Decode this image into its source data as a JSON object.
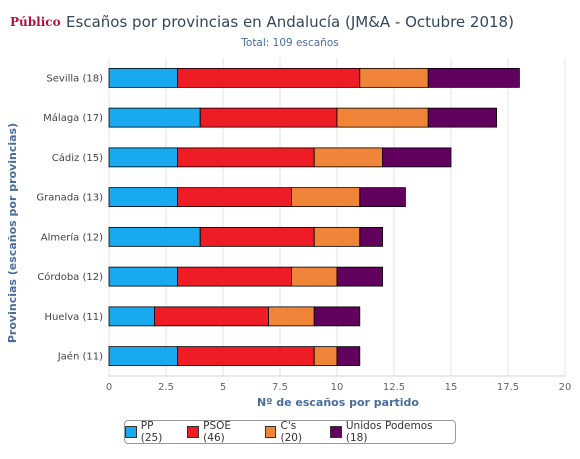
{
  "branding": {
    "logo_text": "Público"
  },
  "chart_data": {
    "type": "bar",
    "orientation": "horizontal",
    "stacked": true,
    "title": "Escaños por provincias en Andalucía (JM&A - Octubre 2018)",
    "subtitle": "Total: 109 escaños",
    "xlabel": "Nº de escaños por partido",
    "ylabel": "Provincias (escaños por provincias)",
    "xlim": [
      0,
      20
    ],
    "x_ticks": [
      "0",
      "2.5",
      "5",
      "7.5",
      "10",
      "12.5",
      "15",
      "17.5",
      "20"
    ],
    "x_tick_values": [
      0,
      2.5,
      5,
      7.5,
      10,
      12.5,
      15,
      17.5,
      20
    ],
    "grid": true,
    "legend_position": "bottom",
    "categories": [
      "Sevilla (18)",
      "Málaga (17)",
      "Cádiz (15)",
      "Granada (13)",
      "Almería (12)",
      "Córdoba (12)",
      "Huelva (11)",
      "Jaén (11)"
    ],
    "series": [
      {
        "name": "PP (25)",
        "color": "#19a9ef",
        "values": [
          3,
          4,
          3,
          3,
          4,
          3,
          2,
          3
        ]
      },
      {
        "name": "PSOE (46)",
        "color": "#ee1c25",
        "values": [
          8,
          6,
          6,
          5,
          5,
          5,
          5,
          6
        ]
      },
      {
        "name": "C's (20)",
        "color": "#f08439",
        "values": [
          3,
          4,
          3,
          3,
          2,
          2,
          2,
          1
        ]
      },
      {
        "name": "Unidos Podemos (18)",
        "color": "#62005e",
        "values": [
          4,
          3,
          3,
          2,
          1,
          2,
          2,
          1
        ]
      }
    ]
  }
}
